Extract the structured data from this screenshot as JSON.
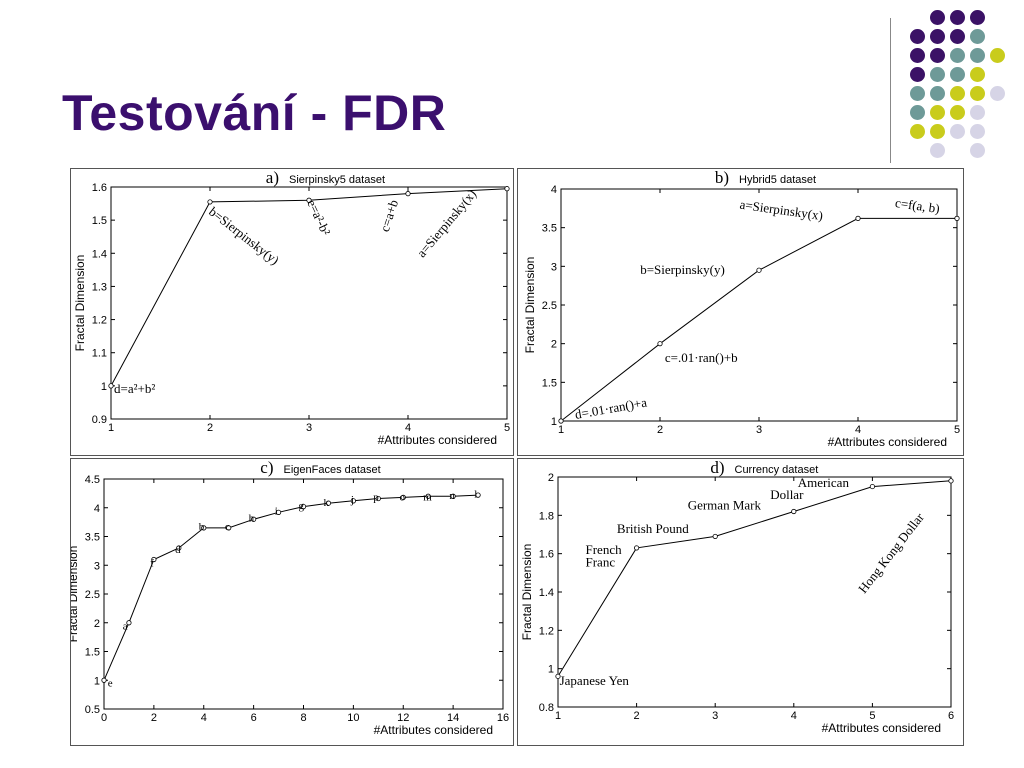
{
  "page": {
    "title": "Testování - FDR",
    "dot_colors": [
      "#3b1266",
      "#6e9a98",
      "#c9cc1c",
      "#d6d4e6"
    ]
  },
  "chart_data": [
    {
      "type": "line",
      "letter": "a)",
      "title": "Sierpinsky5 dataset",
      "xlabel": "#Attributes considered",
      "ylabel": "Fractal Dimension",
      "xlim": [
        1,
        5
      ],
      "ylim": [
        0.9,
        1.6
      ],
      "xticks": [
        1,
        2,
        3,
        4,
        5
      ],
      "yticks": [
        0.9,
        1,
        1.1,
        1.2,
        1.3,
        1.4,
        1.5,
        1.6
      ],
      "x": [
        1,
        2,
        3,
        4,
        5
      ],
      "y": [
        1.0,
        1.555,
        1.56,
        1.58,
        1.595
      ],
      "annotations": [
        {
          "text": "d=a²+b²",
          "x": 1,
          "y": 0.99,
          "dx": 3,
          "dy": 4,
          "rot": 0
        },
        {
          "text": "b=Sierpinsky(y)",
          "x": 2,
          "y": 1.545,
          "dx": -2,
          "dy": 8,
          "rot": 38
        },
        {
          "text": "e=a²-b²",
          "x": 3,
          "y": 1.56,
          "dx": -2,
          "dy": 2,
          "rot": 65
        },
        {
          "text": "c=a+b",
          "x": 3.85,
          "y": 1.565,
          "dx": -5,
          "dy": 34,
          "rot": -72
        },
        {
          "text": "a=Sierpinsky(x)",
          "x": 4.15,
          "y": 1.59,
          "dx": 0,
          "dy": 68,
          "rot": -50
        }
      ]
    },
    {
      "type": "line",
      "letter": "b)",
      "title": "Hybrid5 dataset",
      "xlabel": "#Attributes considered",
      "ylabel": "Fractal Dimension",
      "xlim": [
        1,
        5
      ],
      "ylim": [
        1,
        4
      ],
      "xticks": [
        1,
        2,
        3,
        4,
        5
      ],
      "yticks": [
        1,
        1.5,
        2,
        2.5,
        3,
        3.5,
        4
      ],
      "x": [
        1,
        2,
        3,
        4,
        5
      ],
      "y": [
        1.0,
        2.0,
        2.95,
        3.62,
        3.62
      ],
      "annotations": [
        {
          "text": "d=.01·ran()+a",
          "x": 1.15,
          "y": 1.0,
          "dx": 0,
          "dy": -2,
          "rot": -10
        },
        {
          "text": "c=.01·ran()+b",
          "x": 2.05,
          "y": 1.92,
          "dx": 0,
          "dy": 12,
          "rot": 0
        },
        {
          "text": "b=Sierpinsky(y)",
          "x": 1.8,
          "y": 2.95,
          "dx": 0,
          "dy": 4,
          "rot": 0
        },
        {
          "text": "a=Sierpinsky(x)",
          "x": 2.8,
          "y": 3.8,
          "dx": 0,
          "dy": 4,
          "rot": 8
        },
        {
          "text": "c=f(a, b)",
          "x": 4.37,
          "y": 3.82,
          "dx": 0,
          "dy": 4,
          "rot": 8
        }
      ]
    },
    {
      "type": "line",
      "letter": "c)",
      "title": "EigenFaces dataset",
      "xlabel": "#Attributes considered",
      "ylabel": "Fractal Dimension",
      "xlim": [
        0,
        16
      ],
      "ylim": [
        0.5,
        4.5
      ],
      "xticks": [
        0,
        2,
        4,
        6,
        8,
        10,
        12,
        14,
        16
      ],
      "yticks": [
        0.5,
        1,
        1.5,
        2,
        2.5,
        3,
        3.5,
        4,
        4.5
      ],
      "x": [
        0,
        1,
        2,
        3,
        4,
        5,
        6,
        7,
        8,
        9,
        10,
        11,
        12,
        13,
        14,
        15
      ],
      "y": [
        1.0,
        2.0,
        3.1,
        3.3,
        3.65,
        3.65,
        3.8,
        3.92,
        4.02,
        4.08,
        4.12,
        4.16,
        4.18,
        4.2,
        4.2,
        4.22
      ],
      "annotations": [
        {
          "text": "e",
          "x": 0.15,
          "y": 0.96,
          "dx": 0,
          "dy": 4,
          "rot": 0
        },
        {
          "text": "a",
          "x": 0.75,
          "y": 1.95,
          "dx": 0,
          "dy": 4,
          "rot": 0
        },
        {
          "text": "f",
          "x": 1.85,
          "y": 3.05,
          "dx": 0,
          "dy": 4,
          "rot": 0
        },
        {
          "text": "d",
          "x": 2.85,
          "y": 3.28,
          "dx": 0,
          "dy": 4,
          "rot": 0
        },
        {
          "text": "b",
          "x": 3.8,
          "y": 3.68,
          "dx": 0,
          "dy": 4,
          "rot": 0
        },
        {
          "text": "c",
          "x": 4.85,
          "y": 3.68,
          "dx": 0,
          "dy": 4,
          "rot": 0
        },
        {
          "text": "h",
          "x": 5.8,
          "y": 3.83,
          "dx": 0,
          "dy": 4,
          "rot": 0
        },
        {
          "text": "i",
          "x": 6.85,
          "y": 3.95,
          "dx": 0,
          "dy": 4,
          "rot": 0
        },
        {
          "text": "g",
          "x": 7.8,
          "y": 4.05,
          "dx": 0,
          "dy": 4,
          "rot": 0
        },
        {
          "text": "k",
          "x": 8.8,
          "y": 4.1,
          "dx": 0,
          "dy": 4,
          "rot": 0
        },
        {
          "text": "j",
          "x": 9.9,
          "y": 4.15,
          "dx": 0,
          "dy": 4,
          "rot": 0
        },
        {
          "text": "p",
          "x": 10.8,
          "y": 4.2,
          "dx": 0,
          "dy": 4,
          "rot": 0
        },
        {
          "text": "o",
          "x": 11.85,
          "y": 4.2,
          "dx": 0,
          "dy": 4,
          "rot": 0
        },
        {
          "text": "m",
          "x": 12.8,
          "y": 4.2,
          "dx": 0,
          "dy": 4,
          "rot": 0
        },
        {
          "text": "n",
          "x": 13.85,
          "y": 4.22,
          "dx": 0,
          "dy": 4,
          "rot": 0
        },
        {
          "text": "l",
          "x": 14.85,
          "y": 4.25,
          "dx": 0,
          "dy": 4,
          "rot": 0
        }
      ]
    },
    {
      "type": "line",
      "letter": "d)",
      "title": "Currency dataset",
      "xlabel": "#Attributes considered",
      "ylabel": "Fractal Dimension",
      "xlim": [
        1,
        6
      ],
      "ylim": [
        0.8,
        2
      ],
      "xticks": [
        1,
        2,
        3,
        4,
        5,
        6
      ],
      "yticks": [
        0.8,
        1,
        1.2,
        1.4,
        1.6,
        1.8,
        2
      ],
      "x": [
        1,
        2,
        3,
        4,
        5,
        6
      ],
      "y": [
        0.96,
        1.63,
        1.69,
        1.82,
        1.95,
        1.98
      ],
      "annotations": [
        {
          "text": "Japanese Yen",
          "x": 1.02,
          "y": 0.935,
          "dx": 0,
          "dy": 4,
          "rot": 0
        },
        {
          "text": "French",
          "x": 1.35,
          "y": 1.62,
          "dx": 0,
          "dy": 4,
          "rot": 0
        },
        {
          "text": "Franc",
          "x": 1.35,
          "y": 1.555,
          "dx": 0,
          "dy": 4,
          "rot": 0
        },
        {
          "text": "British Pound",
          "x": 1.75,
          "y": 1.73,
          "dx": 0,
          "dy": 4,
          "rot": 0
        },
        {
          "text": "German Mark",
          "x": 2.65,
          "y": 1.85,
          "dx": 0,
          "dy": 4,
          "rot": 0
        },
        {
          "text": "Dollar",
          "x": 3.7,
          "y": 1.905,
          "dx": 0,
          "dy": 4,
          "rot": 0
        },
        {
          "text": "American",
          "x": 4.05,
          "y": 1.97,
          "dx": 0,
          "dy": 4,
          "rot": 0
        },
        {
          "text": "Hong Kong Dollar",
          "x": 4.9,
          "y": 1.41,
          "dx": 0,
          "dy": 4,
          "rot": -52
        }
      ]
    }
  ]
}
